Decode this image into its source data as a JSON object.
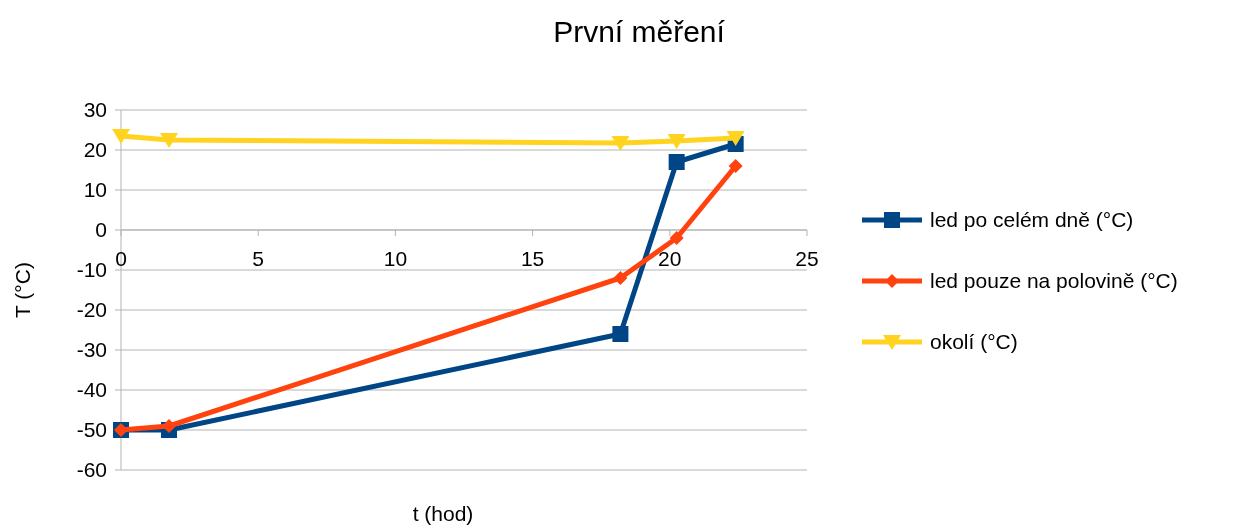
{
  "chart_data": {
    "type": "line",
    "title": "První měření",
    "xlabel": "t (hod)",
    "ylabel": "T (°C)",
    "xlim": [
      0,
      25
    ],
    "xticks": [
      0,
      5,
      10,
      15,
      20,
      25
    ],
    "ylim": [
      -60,
      30
    ],
    "yticks": [
      -60,
      -50,
      -40,
      -30,
      -20,
      -10,
      0,
      10,
      20,
      30
    ],
    "grid": "y",
    "legend": "right",
    "series": [
      {
        "name": "led po celém dně (°C)",
        "color": "#004586",
        "marker": "square",
        "x": [
          0,
          1.75,
          18.2,
          20.25,
          22.4
        ],
        "values": [
          -50,
          -50,
          -26,
          17,
          21.5
        ]
      },
      {
        "name": "led pouze na polovině (°C)",
        "color": "#ff420e",
        "marker": "diamond",
        "x": [
          0,
          1.75,
          18.2,
          20.25,
          22.4
        ],
        "values": [
          -50,
          -49,
          -12,
          -2,
          16
        ]
      },
      {
        "name": "okolí (°C)",
        "color": "#ffd320",
        "marker": "triangle",
        "x": [
          0,
          1.75,
          18.2,
          20.25,
          22.4
        ],
        "values": [
          23.5,
          22.5,
          21.75,
          22.25,
          23
        ]
      }
    ]
  }
}
